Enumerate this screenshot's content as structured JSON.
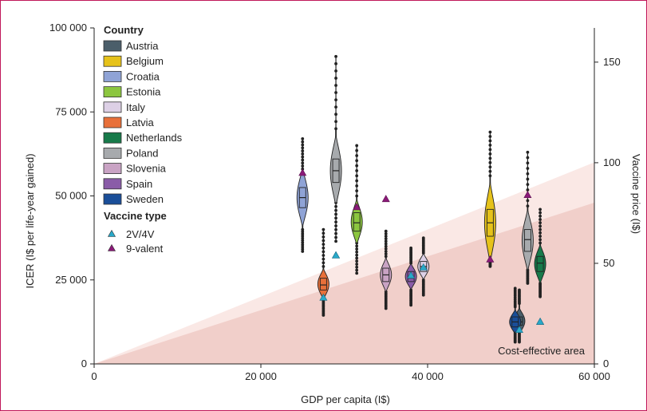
{
  "chart_data": {
    "type": "violin",
    "xlabel": "GDP per capita (I$)",
    "ylabel": "ICER (I$ per life-year gained)",
    "y2label": "Vaccine price (I$)",
    "xlim": [
      0,
      60000
    ],
    "ylim": [
      0,
      100000
    ],
    "y2lim": [
      0,
      167
    ],
    "x_ticks": [
      {
        "value": 0,
        "label": "0"
      },
      {
        "value": 20000,
        "label": "20 000"
      },
      {
        "value": 40000,
        "label": "40 000"
      },
      {
        "value": 60000,
        "label": "60 000"
      }
    ],
    "y_ticks": [
      {
        "value": 0,
        "label": "0"
      },
      {
        "value": 25000,
        "label": "25 000"
      },
      {
        "value": 50000,
        "label": "50 000"
      },
      {
        "value": 75000,
        "label": "75 000"
      },
      {
        "value": 100000,
        "label": "100 000"
      }
    ],
    "y2_ticks": [
      {
        "value": 0,
        "label": "0"
      },
      {
        "value": 50,
        "label": "50"
      },
      {
        "value": 100,
        "label": "100"
      },
      {
        "value": 150,
        "label": "150"
      }
    ],
    "threshold_slopes": {
      "light": 1.0,
      "dark": 0.8
    },
    "annotation": "Cost-effective area",
    "legend": {
      "country_title": "Country",
      "vaccine_title": "Vaccine type",
      "vaccine_types": [
        {
          "label": "2V/4V",
          "color": "#29a9c9"
        },
        {
          "label": "9-valent",
          "color": "#8b1a78"
        }
      ]
    },
    "countries": [
      {
        "name": "Austria",
        "color": "#4b5e6a",
        "gdp": 51000,
        "min": 10000,
        "q1": 11500,
        "median": 12500,
        "q3": 14000,
        "max": 18000,
        "whisker_low": 6500,
        "whisker_high": 22000,
        "price_2v4v": 17,
        "price_9v": null
      },
      {
        "name": "Belgium",
        "color": "#e6c21a",
        "gdp": 47500,
        "min": 31000,
        "q1": 38000,
        "median": 42000,
        "q3": 46000,
        "max": 56000,
        "whisker_low": 29000,
        "whisker_high": 69000,
        "price_2v4v": null,
        "price_9v": 52
      },
      {
        "name": "Croatia",
        "color": "#8fa3d6",
        "gdp": 25000,
        "min": 40000,
        "q1": 46500,
        "median": 49500,
        "q3": 52500,
        "max": 58000,
        "whisker_low": 33500,
        "whisker_high": 67000,
        "price_2v4v": null,
        "price_9v": 95
      },
      {
        "name": "Estonia",
        "color": "#8cc63f",
        "gdp": 31500,
        "min": 36000,
        "q1": 39500,
        "median": 42000,
        "q3": 45000,
        "max": 50000,
        "whisker_low": 27000,
        "whisker_high": 65000,
        "price_2v4v": null,
        "price_9v": 78
      },
      {
        "name": "Italy",
        "color": "#ddd0e6",
        "gdp": 39500,
        "min": 25000,
        "q1": 27500,
        "median": 29000,
        "q3": 30500,
        "max": 33000,
        "whisker_low": 20500,
        "whisker_high": 37500,
        "price_2v4v": 48,
        "price_9v": null
      },
      {
        "name": "Latvia",
        "color": "#e8703a",
        "gdp": 27500,
        "min": 19500,
        "q1": 22000,
        "median": 23500,
        "q3": 25500,
        "max": 29000,
        "whisker_low": 14500,
        "whisker_high": 40000,
        "price_2v4v": 33,
        "price_9v": null
      },
      {
        "name": "Netherlands",
        "color": "#177a4a",
        "gdp": 53500,
        "min": 24000,
        "q1": 27500,
        "median": 30000,
        "q3": 32000,
        "max": 36000,
        "whisker_low": 20000,
        "whisker_high": 46000,
        "price_2v4v": 21,
        "price_9v": null
      },
      {
        "name": "Poland",
        "color": "#a7aaad",
        "gdp": 29000,
        "min": 48000,
        "q1": 54000,
        "median": 57500,
        "q3": 61000,
        "max": 70000,
        "whisker_low": 36500,
        "whisker_high": 91500,
        "price_2v4v": 54,
        "price_9v": null
      },
      {
        "name": "Slovenia",
        "color": "#c9a3c4",
        "gdp": 35000,
        "min": 21500,
        "q1": 24500,
        "median": 26500,
        "q3": 28500,
        "max": 32000,
        "whisker_low": 16500,
        "whisker_high": 39500,
        "price_2v4v": null,
        "price_9v": 82
      },
      {
        "name": "Spain",
        "color": "#8a5ca8",
        "gdp": 38000,
        "min": 22000,
        "q1": 24500,
        "median": 25500,
        "q3": 27500,
        "max": 30000,
        "whisker_low": 17500,
        "whisker_high": 34500,
        "price_2v4v": 44,
        "price_9v": null
      },
      {
        "name": "Sweden",
        "color": "#1a4e99",
        "gdp": 50500,
        "min": 9500,
        "q1": 11000,
        "median": 12500,
        "q3": 14000,
        "max": 17000,
        "whisker_low": 6500,
        "whisker_high": 22500,
        "price_2v4v": null,
        "price_9v": null
      },
      {
        "name": "",
        "color": "#a7aaad",
        "gdp": 52000,
        "min": 28000,
        "q1": 33500,
        "median": 37000,
        "q3": 40000,
        "max": 47000,
        "whisker_low": 24000,
        "whisker_high": 63000,
        "price_2v4v": null,
        "price_9v": 84
      }
    ]
  }
}
